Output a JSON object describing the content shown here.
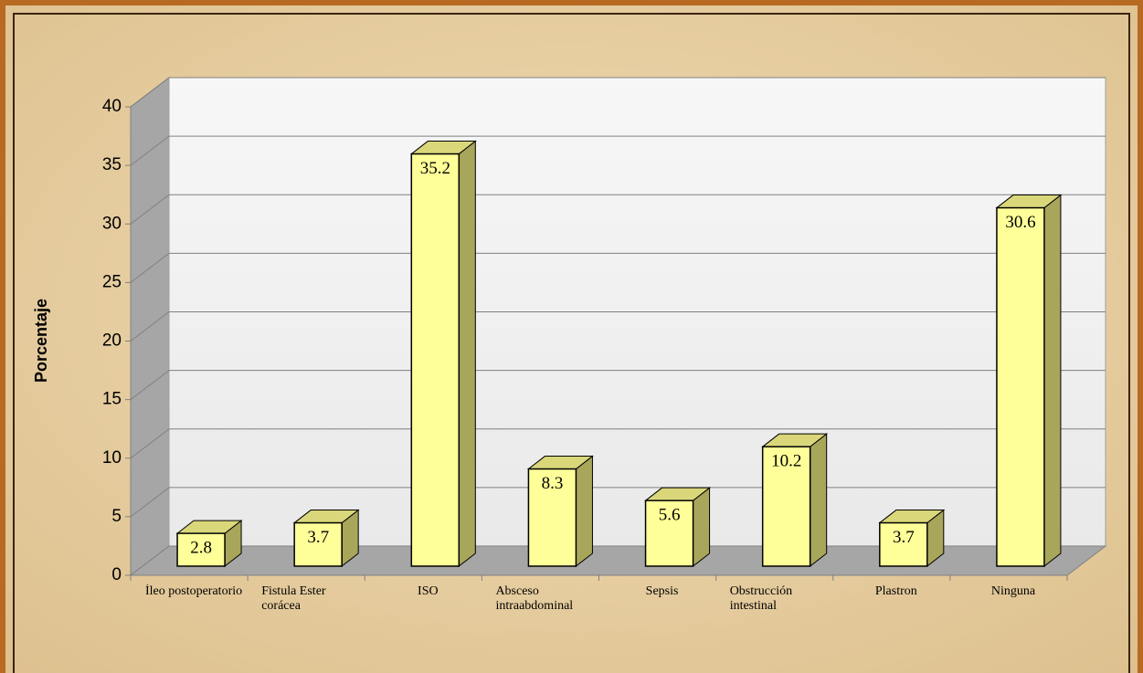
{
  "chart_data": {
    "type": "bar3d",
    "ylabel": "Porcentaje",
    "categories": [
      "Íleo postoperatorio",
      "Fistula Ester corácea",
      "ISO",
      "Absceso intraabdominal",
      "Sepsis",
      "Obstrucción intestinal",
      "Plastron",
      "Ninguna"
    ],
    "values": [
      2.8,
      3.7,
      35.2,
      8.3,
      5.6,
      10.2,
      3.7,
      30.6
    ],
    "color": "#ffff99",
    "ylim": [
      0,
      40
    ],
    "yticks": [
      0,
      5,
      10,
      15,
      20,
      25,
      30,
      35,
      40
    ],
    "grid": true
  }
}
